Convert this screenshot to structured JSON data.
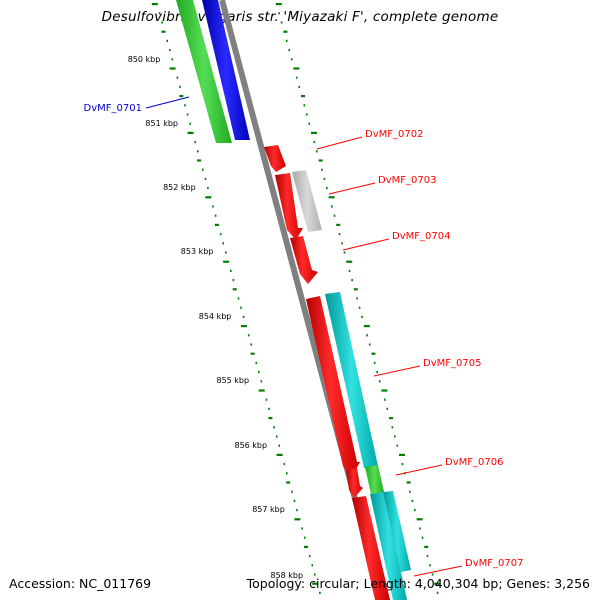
{
  "title": "Desulfovibrio vulgaris str. 'Miyazaki F', complete genome",
  "footer": {
    "accession": "Accession: NC_011769",
    "summary": "Topology: circular; Length: 4,040,304 bp; Genes: 3,256"
  },
  "colors": {
    "backbone": "#808080",
    "tick": "#008000",
    "gene_red": "#ff0000",
    "gene_gray": "#c0c0c0",
    "gene_cyan": "#00c8c8",
    "gene_green": "#33cc33",
    "gene_blue": "#0000ee",
    "label_red": "#ff0000",
    "label_blue": "#0000cc"
  },
  "scale_labels": [
    "850 kbp",
    "851 kbp",
    "852 kbp",
    "853 kbp",
    "854 kbp",
    "855 kbp",
    "856 kbp",
    "857 kbp",
    "858 kbp"
  ],
  "gene_labels": [
    {
      "text": "DvMF_0701",
      "color": "blue"
    },
    {
      "text": "DvMF_0702",
      "color": "red"
    },
    {
      "text": "DvMF_0703",
      "color": "red"
    },
    {
      "text": "DvMF_0704",
      "color": "red"
    },
    {
      "text": "DvMF_0705",
      "color": "red"
    },
    {
      "text": "DvMF_0706",
      "color": "red"
    },
    {
      "text": "DvMF_0707",
      "color": "red"
    }
  ]
}
